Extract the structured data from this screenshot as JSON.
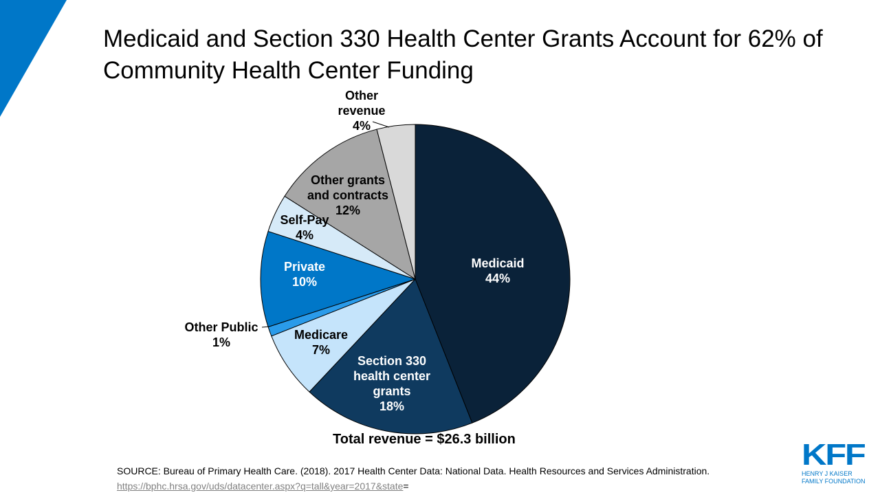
{
  "title": "Medicaid and Section 330 Health Center Grants Account for 62% of Community Health Center Funding",
  "chart_data": {
    "type": "pie",
    "start": "top",
    "direction": "clockwise",
    "slices": [
      {
        "name": "Medicaid",
        "value": 44,
        "label": [
          "Medicaid",
          "44%"
        ],
        "color": "#0a2239"
      },
      {
        "name": "Section 330 health center grants",
        "value": 18,
        "label": [
          "Section 330",
          "health center",
          "grants",
          "18%"
        ],
        "color": "#0f3a5f"
      },
      {
        "name": "Medicare",
        "value": 7,
        "label": [
          "Medicare",
          "7%"
        ],
        "color": "#c5e4fb"
      },
      {
        "name": "Other Public",
        "value": 1,
        "label": [
          "Other Public",
          "1%"
        ],
        "color": "#2a9bea"
      },
      {
        "name": "Private",
        "value": 10,
        "label": [
          "Private",
          "10%"
        ],
        "color": "#0077c8"
      },
      {
        "name": "Self-Pay",
        "value": 4,
        "label": [
          "Self-Pay",
          "4%"
        ],
        "color": "#d6eaf8"
      },
      {
        "name": "Other grants and contracts",
        "value": 12,
        "label": [
          "Other grants",
          "and contracts",
          "12%"
        ],
        "color": "#a6a6a6"
      },
      {
        "name": "Other revenue",
        "value": 4,
        "label": [
          "Other",
          "revenue",
          "4%"
        ],
        "color": "#d9d9d9"
      }
    ],
    "annotation": "Total revenue = $26.3 billion"
  },
  "source": {
    "text": "SOURCE: Bureau of Primary  Health Care. (2018). 2017 Health Center Data: National Data. Health Resources and Services Administration. ",
    "link": "https://bphc.hrsa.gov/uds/datacenter.aspx?q=tall&year=2017&state",
    "suffix": "="
  },
  "logo": {
    "mark": "KFF",
    "line1": "HENRY J KAISER",
    "line2": "FAMILY FOUNDATION"
  },
  "colors": {
    "accent": "#0077c8"
  }
}
